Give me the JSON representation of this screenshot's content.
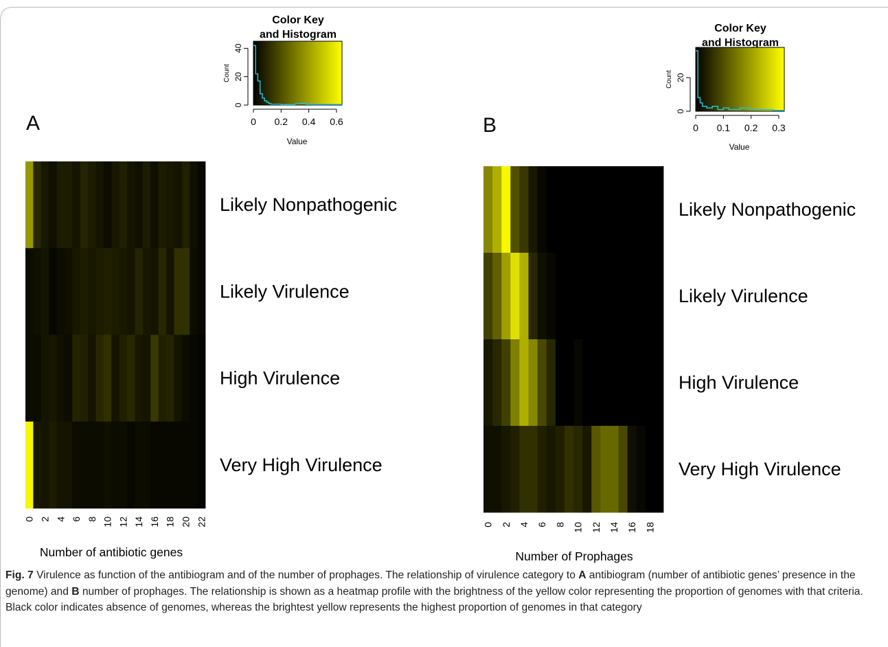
{
  "figure": {
    "panels": [
      {
        "letter": "A"
      },
      {
        "letter": "B"
      }
    ]
  },
  "caption": {
    "fig_label": "Fig. 7",
    "text_1": "  Virulence as function of the antibiogram and of the number of prophages. The relationship of virulence category to ",
    "bold_A": "A",
    "text_2": " antibiogram (number of antibiotic genes’ presence in the genome) and ",
    "bold_B": "B",
    "text_3": " number of prophages. The relationship is shown as a heatmap profile with the brightness of the yellow color representing the proportion of genomes with that criteria. Black color indicates absence of genomes, whereas the brightest yellow represents the highest proportion of genomes in that category"
  },
  "colors": {
    "low": "#000000",
    "high": "#ffff00",
    "histogram_line": "#22c3cf",
    "caption_text": "#231f20"
  },
  "chart_data": [
    {
      "type": "heatmap",
      "panel": "A",
      "xlabel": "Number of antibiotic genes",
      "x_ticks": [
        "0",
        "2",
        "4",
        "6",
        "8",
        "10",
        "12",
        "14",
        "16",
        "18",
        "20",
        "22"
      ],
      "rows": [
        "Likely Nonpathogenic",
        "Likely Virulence",
        "High Virulence",
        "Very High Virulence"
      ],
      "columns": [
        "0",
        "1",
        "2",
        "3",
        "4",
        "5",
        "6",
        "7",
        "8",
        "9",
        "10",
        "11",
        "12",
        "13",
        "14",
        "15",
        "16",
        "17",
        "18",
        "19",
        "20",
        "21",
        "22"
      ],
      "values": [
        [
          0.38,
          0.1,
          0.06,
          0.04,
          0.07,
          0.07,
          0.05,
          0.09,
          0.07,
          0.05,
          0.03,
          0.06,
          0.08,
          0.05,
          0.04,
          0.07,
          0.04,
          0.07,
          0.06,
          0.05,
          0.08,
          0.04,
          0.02
        ],
        [
          0.03,
          0.04,
          0.05,
          0.02,
          0.03,
          0.04,
          0.06,
          0.07,
          0.06,
          0.07,
          0.08,
          0.07,
          0.06,
          0.05,
          0.09,
          0.06,
          0.05,
          0.1,
          0.05,
          0.12,
          0.12,
          0.03,
          0.02
        ],
        [
          0.03,
          0.03,
          0.05,
          0.06,
          0.04,
          0.03,
          0.09,
          0.08,
          0.05,
          0.1,
          0.12,
          0.05,
          0.08,
          0.1,
          0.06,
          0.05,
          0.14,
          0.08,
          0.09,
          0.05,
          0.03,
          0.02,
          0.01
        ],
        [
          0.62,
          0.06,
          0.05,
          0.07,
          0.05,
          0.05,
          0.03,
          0.03,
          0.03,
          0.03,
          0.04,
          0.03,
          0.03,
          0.02,
          0.03,
          0.03,
          0.02,
          0.02,
          0.02,
          0.02,
          0.02,
          0.02,
          0.01
        ]
      ],
      "color_key": {
        "title": "Color Key\nand Histogram",
        "xlabel": "Value",
        "ylabel": "Count",
        "x_ticks": [
          "0",
          "0.2",
          "0.4",
          "0.6"
        ],
        "y_ticks": [
          "0",
          "20",
          "40"
        ],
        "xlim": [
          0,
          0.64
        ],
        "ylim": [
          0,
          45
        ],
        "histogram_x": [
          0,
          0.016,
          0.032,
          0.048,
          0.064,
          0.08,
          0.096,
          0.112,
          0.128,
          0.2,
          0.3,
          0.34,
          0.38,
          0.64
        ],
        "histogram_counts": [
          42,
          22,
          17,
          8,
          5,
          3,
          2,
          1,
          0.6,
          0.4,
          0.8,
          1.2,
          0.5,
          0.3
        ]
      }
    },
    {
      "type": "heatmap",
      "panel": "B",
      "xlabel": "Number of Prophages",
      "x_ticks": [
        "0",
        "2",
        "4",
        "6",
        "8",
        "10",
        "12",
        "14",
        "16",
        "18"
      ],
      "rows": [
        "Likely Nonpathogenic",
        "Likely Virulence",
        "High Virulence",
        "Very High Virulence"
      ],
      "columns": [
        "0",
        "1",
        "2",
        "3",
        "4",
        "5",
        "6",
        "7",
        "8",
        "9",
        "10",
        "11",
        "12",
        "13",
        "14",
        "15",
        "16",
        "17",
        "18",
        "19"
      ],
      "values": [
        [
          0.17,
          0.22,
          0.31,
          0.1,
          0.07,
          0.03,
          0.01,
          0,
          0,
          0,
          0,
          0,
          0,
          0,
          0,
          0,
          0,
          0,
          0,
          0
        ],
        [
          0.08,
          0.12,
          0.2,
          0.28,
          0.22,
          0.05,
          0.02,
          0.01,
          0,
          0,
          0,
          0,
          0,
          0,
          0,
          0,
          0,
          0,
          0,
          0
        ],
        [
          0.03,
          0.05,
          0.08,
          0.16,
          0.22,
          0.17,
          0.09,
          0.05,
          0,
          0,
          0.01,
          0,
          0,
          0,
          0,
          0,
          0,
          0,
          0,
          0
        ],
        [
          0.02,
          0.02,
          0.03,
          0.04,
          0.06,
          0.06,
          0.04,
          0.03,
          0.04,
          0.06,
          0.05,
          0.03,
          0.11,
          0.13,
          0.13,
          0.09,
          0.02,
          0.01,
          0,
          0
        ]
      ],
      "color_key": {
        "title": "Color Key\nand Histogram",
        "xlabel": "Value",
        "ylabel": "Count",
        "x_ticks": [
          "0",
          "0.1",
          "0.2",
          "0.3"
        ],
        "y_ticks": [
          "0",
          "20"
        ],
        "xlim": [
          0,
          0.32
        ],
        "ylim": [
          0,
          38
        ],
        "histogram_x": [
          0,
          0.008,
          0.016,
          0.024,
          0.04,
          0.05,
          0.06,
          0.08,
          0.1,
          0.12,
          0.14,
          0.16,
          0.2,
          0.24,
          0.28,
          0.32
        ],
        "histogram_counts": [
          36,
          8,
          5,
          3,
          2,
          2,
          3,
          1,
          2,
          1,
          1,
          2,
          1,
          1,
          0.5,
          0.3
        ]
      }
    }
  ]
}
